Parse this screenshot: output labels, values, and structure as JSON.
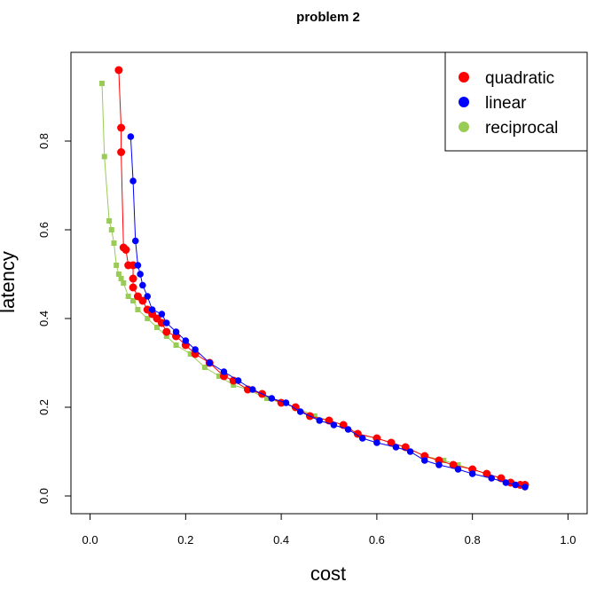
{
  "chart_data": {
    "type": "scatter",
    "title": "problem 2",
    "xlabel": "cost",
    "ylabel": "latency",
    "xlim": [
      -0.04,
      1.04
    ],
    "ylim": [
      -0.04,
      1.0
    ],
    "x_ticks": [
      "0.0",
      "0.2",
      "0.4",
      "0.6",
      "0.8",
      "1.0"
    ],
    "y_ticks": [
      "0.0",
      "0.2",
      "0.4",
      "0.6",
      "0.8"
    ],
    "legend_position": "top-right",
    "grid": false,
    "series": [
      {
        "name": "quadratic",
        "color": "#ff0000",
        "points": [
          [
            0.06,
            0.96
          ],
          [
            0.065,
            0.83
          ],
          [
            0.065,
            0.775
          ],
          [
            0.07,
            0.56
          ],
          [
            0.075,
            0.555
          ],
          [
            0.08,
            0.52
          ],
          [
            0.09,
            0.52
          ],
          [
            0.09,
            0.49
          ],
          [
            0.09,
            0.47
          ],
          [
            0.1,
            0.45
          ],
          [
            0.11,
            0.44
          ],
          [
            0.12,
            0.42
          ],
          [
            0.13,
            0.41
          ],
          [
            0.14,
            0.4
          ],
          [
            0.15,
            0.39
          ],
          [
            0.16,
            0.37
          ],
          [
            0.18,
            0.36
          ],
          [
            0.2,
            0.34
          ],
          [
            0.22,
            0.32
          ],
          [
            0.25,
            0.3
          ],
          [
            0.28,
            0.27
          ],
          [
            0.3,
            0.26
          ],
          [
            0.33,
            0.24
          ],
          [
            0.36,
            0.23
          ],
          [
            0.4,
            0.21
          ],
          [
            0.43,
            0.2
          ],
          [
            0.46,
            0.18
          ],
          [
            0.5,
            0.17
          ],
          [
            0.53,
            0.16
          ],
          [
            0.56,
            0.14
          ],
          [
            0.6,
            0.13
          ],
          [
            0.63,
            0.12
          ],
          [
            0.66,
            0.11
          ],
          [
            0.7,
            0.09
          ],
          [
            0.73,
            0.08
          ],
          [
            0.76,
            0.07
          ],
          [
            0.8,
            0.06
          ],
          [
            0.83,
            0.05
          ],
          [
            0.86,
            0.04
          ],
          [
            0.88,
            0.03
          ],
          [
            0.9,
            0.025
          ],
          [
            0.91,
            0.025
          ]
        ]
      },
      {
        "name": "linear",
        "color": "#0000ff",
        "points": [
          [
            0.085,
            0.81
          ],
          [
            0.09,
            0.71
          ],
          [
            0.095,
            0.575
          ],
          [
            0.1,
            0.52
          ],
          [
            0.105,
            0.5
          ],
          [
            0.11,
            0.475
          ],
          [
            0.12,
            0.45
          ],
          [
            0.13,
            0.42
          ],
          [
            0.15,
            0.41
          ],
          [
            0.16,
            0.39
          ],
          [
            0.18,
            0.37
          ],
          [
            0.2,
            0.35
          ],
          [
            0.22,
            0.33
          ],
          [
            0.25,
            0.3
          ],
          [
            0.28,
            0.28
          ],
          [
            0.31,
            0.26
          ],
          [
            0.34,
            0.24
          ],
          [
            0.38,
            0.22
          ],
          [
            0.41,
            0.21
          ],
          [
            0.44,
            0.19
          ],
          [
            0.48,
            0.17
          ],
          [
            0.51,
            0.16
          ],
          [
            0.54,
            0.15
          ],
          [
            0.57,
            0.13
          ],
          [
            0.6,
            0.12
          ],
          [
            0.64,
            0.11
          ],
          [
            0.67,
            0.1
          ],
          [
            0.7,
            0.08
          ],
          [
            0.73,
            0.07
          ],
          [
            0.77,
            0.06
          ],
          [
            0.8,
            0.05
          ],
          [
            0.84,
            0.04
          ],
          [
            0.87,
            0.03
          ],
          [
            0.89,
            0.025
          ],
          [
            0.91,
            0.02
          ]
        ]
      },
      {
        "name": "reciprocal",
        "color": "#99cc55",
        "points": [
          [
            0.025,
            0.93
          ],
          [
            0.03,
            0.765
          ],
          [
            0.04,
            0.62
          ],
          [
            0.045,
            0.6
          ],
          [
            0.05,
            0.57
          ],
          [
            0.055,
            0.52
          ],
          [
            0.06,
            0.5
          ],
          [
            0.065,
            0.49
          ],
          [
            0.07,
            0.48
          ],
          [
            0.08,
            0.45
          ],
          [
            0.09,
            0.44
          ],
          [
            0.1,
            0.42
          ],
          [
            0.12,
            0.4
          ],
          [
            0.14,
            0.38
          ],
          [
            0.16,
            0.36
          ],
          [
            0.18,
            0.34
          ],
          [
            0.21,
            0.32
          ],
          [
            0.24,
            0.29
          ],
          [
            0.27,
            0.27
          ],
          [
            0.3,
            0.25
          ],
          [
            0.33,
            0.24
          ],
          [
            0.37,
            0.22
          ],
          [
            0.4,
            0.21
          ],
          [
            0.43,
            0.2
          ],
          [
            0.47,
            0.18
          ],
          [
            0.5,
            0.17
          ],
          [
            0.53,
            0.16
          ],
          [
            0.56,
            0.14
          ],
          [
            0.6,
            0.13
          ],
          [
            0.63,
            0.12
          ],
          [
            0.66,
            0.11
          ],
          [
            0.7,
            0.09
          ],
          [
            0.74,
            0.08
          ],
          [
            0.77,
            0.07
          ],
          [
            0.8,
            0.06
          ],
          [
            0.83,
            0.05
          ],
          [
            0.86,
            0.04
          ],
          [
            0.88,
            0.03
          ],
          [
            0.9,
            0.025
          ]
        ]
      }
    ]
  }
}
